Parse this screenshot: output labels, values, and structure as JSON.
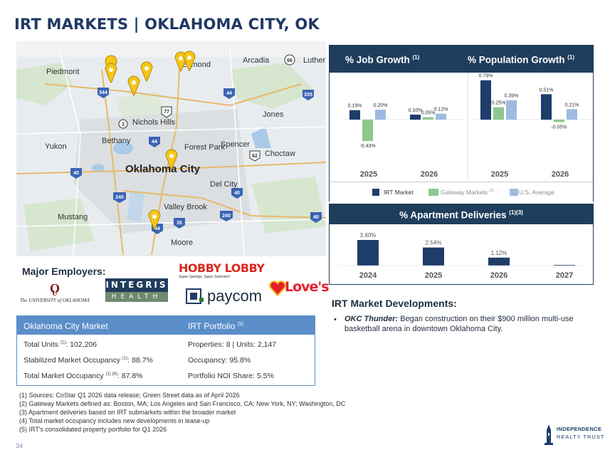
{
  "title": "IRT MARKETS | OKLAHOMA CITY, OK",
  "map": {
    "labels": [
      "Piedmont",
      "Edmond",
      "Arcadia",
      "Luther",
      "Jones",
      "Nichols Hills",
      "Bethany",
      "Yukon",
      "Forest Park",
      "Spencer",
      "Choctaw",
      "Oklahoma City",
      "Del City",
      "Valley Brook",
      "Mustang",
      "Moore"
    ],
    "highways": [
      "344",
      "66",
      "44",
      "335",
      "77",
      "3",
      "44",
      "62",
      "40",
      "240",
      "40",
      "240",
      "44",
      "35",
      "40"
    ]
  },
  "growth_panel": {
    "job_title": "% Job Growth",
    "job_sup": "(1)",
    "pop_title": "% Population Growth",
    "pop_sup": "(1)",
    "legend": {
      "irt": "IRT Market",
      "gateway": "Gateway Markets",
      "gateway_sup": "(2)",
      "us": "U.S. Average"
    }
  },
  "deliveries_panel": {
    "title": "% Apartment Deliveries",
    "sup": "(1)(3)"
  },
  "colors": {
    "irt": "#1f3d6b",
    "gateway": "#8dc88d",
    "us": "#9dbbe0",
    "panel": "#1f3d5c",
    "table": "#5b8ec9"
  },
  "chart_data": [
    {
      "type": "bar",
      "title": "% Job Growth",
      "categories": [
        "2025",
        "2026"
      ],
      "series": [
        {
          "name": "IRT Market",
          "values": [
            0.19,
            0.1
          ]
        },
        {
          "name": "Gateway Markets",
          "values": [
            -0.43,
            0.05
          ]
        },
        {
          "name": "U.S. Average",
          "values": [
            0.2,
            0.12
          ]
        }
      ],
      "labels": [
        [
          "0.19%",
          "-0.43%",
          "0.20%"
        ],
        [
          "0.10%",
          "0.05%",
          "0.12%"
        ]
      ]
    },
    {
      "type": "bar",
      "title": "% Population Growth",
      "categories": [
        "2025",
        "2026"
      ],
      "series": [
        {
          "name": "IRT Market",
          "values": [
            0.79,
            0.51
          ]
        },
        {
          "name": "Gateway Markets",
          "values": [
            0.25,
            -0.05
          ]
        },
        {
          "name": "U.S. Average",
          "values": [
            0.39,
            0.21
          ]
        }
      ],
      "labels": [
        [
          "0.79%",
          "0.25%",
          "0.39%"
        ],
        [
          "0.51%",
          "-0.05%",
          "0.21%"
        ]
      ]
    },
    {
      "type": "bar",
      "title": "% Apartment Deliveries",
      "categories": [
        "2024",
        "2025",
        "2026",
        "2027"
      ],
      "values": [
        3.6,
        2.54,
        1.12,
        0
      ],
      "labels": [
        "3.60%",
        "2.54%",
        "1.12%",
        ""
      ]
    }
  ],
  "employers": {
    "heading": "Major Employers:",
    "ou": "The UNIVERSITY of OKLAHOMA",
    "integris_top": "INTEGRIS",
    "integris_bottom": "HEALTH",
    "hobby": "HOBBY LOBBY",
    "hobby_tag": "Super Savings, Super Selection!",
    "paycom": "paycom",
    "loves": "Love's"
  },
  "table": {
    "head_left": "Oklahoma City Market",
    "head_right": "IRT Portfolio",
    "head_right_sup": "(5)",
    "rows": [
      {
        "left": "Total Units",
        "left_sup": "(1)",
        "left_val": ": 102,206",
        "right": "Properties: 8 | Units: 2,147"
      },
      {
        "left": "Stabilized Market Occupancy",
        "left_sup": "(1)",
        "left_val": ": 88.7%",
        "right": "Occupancy: 95.8%"
      },
      {
        "left": "Total Market Occupancy",
        "left_sup": "(1) (4)",
        "left_val": ": 87.8%",
        "right": "Portfolio NOI Share: 5.5%"
      }
    ]
  },
  "developments": {
    "heading": "IRT Market Developments:",
    "items": [
      {
        "lead": "OKC Thunder:",
        "text": " Began construction on their $900 million multi-use basketball arena in downtown Oklahoma City."
      }
    ]
  },
  "footnotes": [
    "(1)  Sources: CoStar Q1 2026 data release; Green Street data as of April 2026",
    "(2)  Gateway Markets defined as: Boston, MA; Los Angeles and San Francisco, CA; New York, NY; Washington, DC",
    "(3)  Apartment deliveries based on IRT submarkets within the broader market",
    "(4)  Total market occupancy includes new developments in lease-up",
    "(5)  IRT's consolidated property portfolio for Q1 2026"
  ],
  "page_number": "34",
  "brand": {
    "line1": "INDEPENDENCE",
    "line2": "REALTY TRUST"
  }
}
